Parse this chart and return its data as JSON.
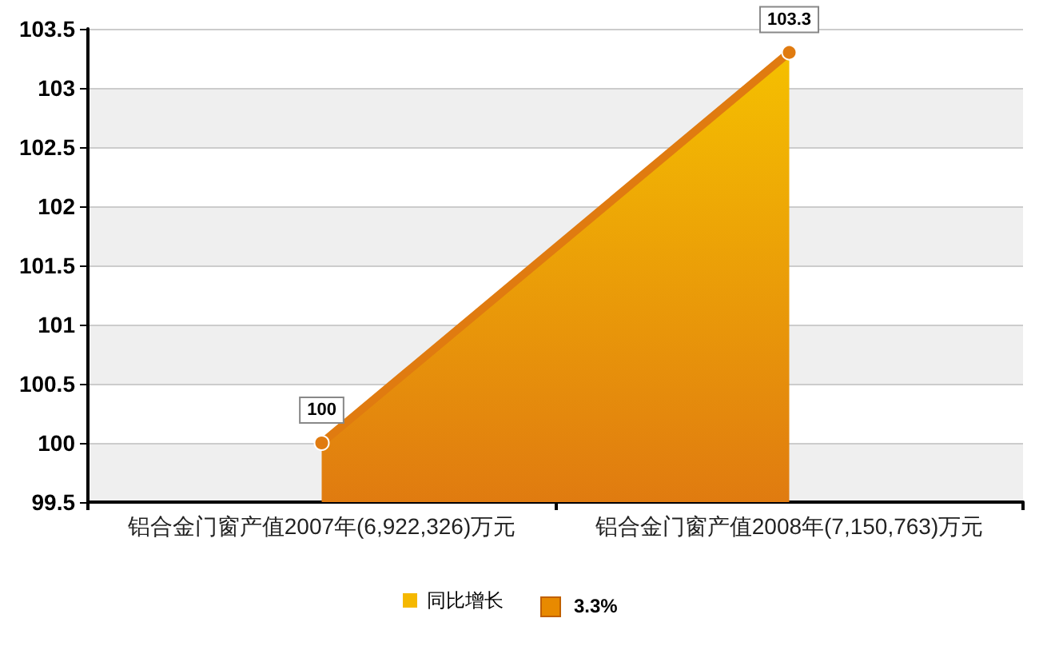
{
  "chart_data": {
    "type": "area",
    "categories": [
      "铝合金门窗产值2007年(6,922,326)万元",
      "铝合金门窗产值2008年(7,150,763)万元"
    ],
    "series": [
      {
        "name": "同比增长",
        "color": "#e07b10",
        "values": [
          100,
          103.3
        ]
      }
    ],
    "annotations": [
      "3.3%"
    ],
    "ylim": [
      99.5,
      103.5
    ],
    "yticks": [
      99.5,
      100,
      100.5,
      101,
      101.5,
      102,
      102.5,
      103,
      103.5
    ],
    "grid": "y",
    "legend": "bottom",
    "data_labels": true,
    "marker": "circle"
  }
}
